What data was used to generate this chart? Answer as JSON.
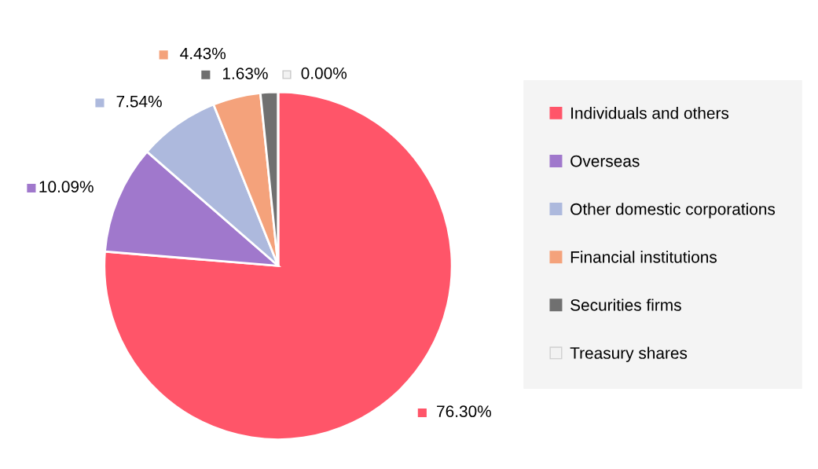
{
  "chart_data": {
    "type": "pie",
    "categories": [
      "Individuals and others",
      "Overseas",
      "Other domestic corporations",
      "Financial institutions",
      "Securities firms",
      "Treasury shares"
    ],
    "values": [
      76.3,
      10.09,
      7.54,
      4.43,
      1.63,
      0.0
    ],
    "colors": [
      "#ff5569",
      "#a078cc",
      "#adb9dd",
      "#f4a27b",
      "#707070",
      "#f2f2f2"
    ],
    "value_labels": [
      "76.30%",
      "10.09%",
      "7.54%",
      "4.43%",
      "1.63%",
      "0.00%"
    ],
    "legend": "right"
  }
}
